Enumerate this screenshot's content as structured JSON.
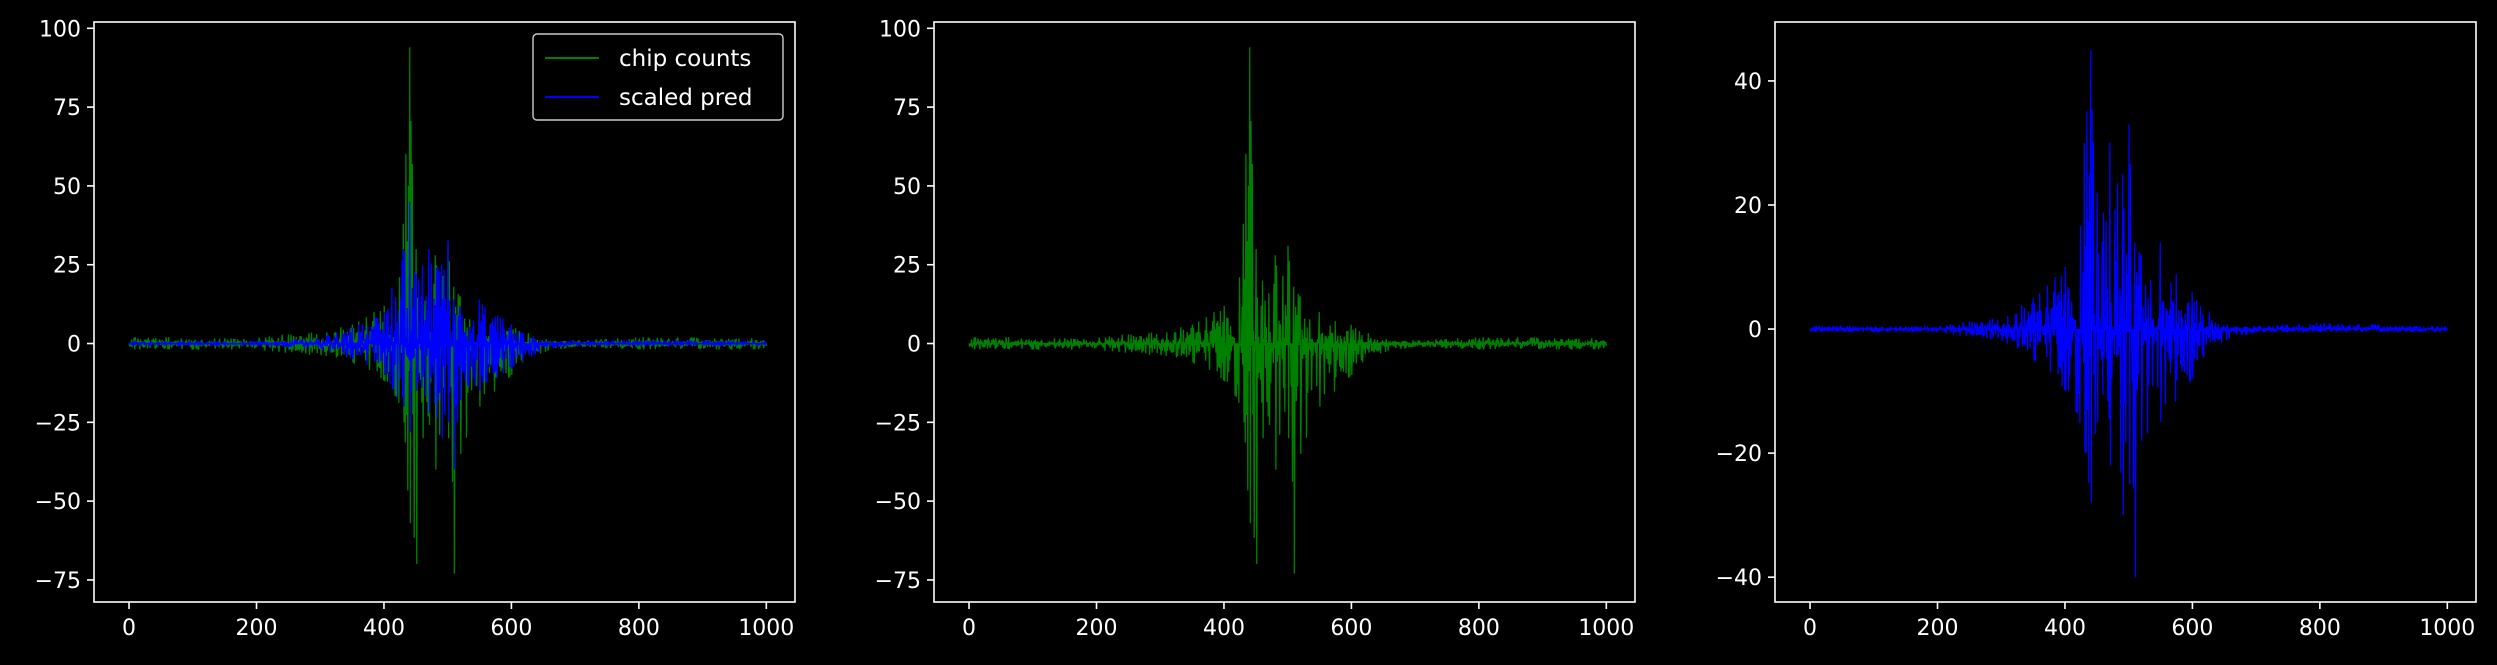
{
  "colors": {
    "background": "#000000",
    "axes": "#ffffff",
    "counts": "#008000",
    "pred": "#0000ff"
  },
  "chart_data": [
    {
      "type": "line",
      "title": "",
      "xlabel": "",
      "ylabel": "",
      "xlim": [
        -55,
        1045
      ],
      "ylim": [
        -82,
        102
      ],
      "xticks": [
        0,
        200,
        400,
        600,
        800,
        1000
      ],
      "xtick_labels": [
        "0",
        "200",
        "400",
        "600",
        "800",
        "1000"
      ],
      "yticks": [
        -75,
        -50,
        -25,
        0,
        25,
        50,
        75,
        100
      ],
      "ytick_labels": [
        "−75",
        "−50",
        "−25",
        "0",
        "25",
        "50",
        "75",
        "100"
      ],
      "legend": {
        "placement": "upper right"
      },
      "series": [
        {
          "name": "chip counts",
          "color": "#008000",
          "x_start": 0,
          "x_end": 1000,
          "n_points": 1000,
          "envelope": {
            "x": [
              0,
              200,
              300,
              350,
              400,
              430,
              440,
              450,
              460,
              480,
              500,
              510,
              520,
              550,
              600,
              650,
              700,
              800,
              1000
            ],
            "upper": [
              2,
              2,
              4,
              6,
              12,
              38,
              94,
              30,
              20,
              28,
              31,
              18,
              15,
              10,
              6,
              2,
              1,
              2,
              2
            ],
            "lower": [
              -2,
              -2,
              -4,
              -6,
              -12,
              -25,
              -57,
              -70,
              -30,
              -40,
              -30,
              -73,
              -35,
              -20,
              -10,
              -3,
              -1,
              -2,
              -2
            ]
          }
        },
        {
          "name": "scaled pred",
          "color": "#0000ff",
          "x_start": 0,
          "x_end": 1000,
          "n_points": 1000,
          "envelope": {
            "x": [
              0,
              200,
              300,
              350,
              400,
              430,
              440,
              450,
              470,
              490,
              500,
              510,
              520,
              550,
              600,
              650,
              700,
              800,
              1000
            ],
            "upper": [
              0.5,
              0.5,
              2,
              5,
              10,
              30,
              45,
              22,
              30,
              25,
              33,
              14,
              12,
              14,
              6,
              1,
              0.5,
              1,
              0.5
            ],
            "lower": [
              -0.5,
              -0.5,
              -2,
              -5,
              -10,
              -20,
              -28,
              -15,
              -22,
              -30,
              -25,
              -40,
              -18,
              -15,
              -8,
              -2,
              -0.5,
              -0.5,
              -0.5
            ]
          }
        }
      ]
    },
    {
      "type": "line",
      "title": "",
      "xlabel": "",
      "ylabel": "",
      "xlim": [
        -55,
        1045
      ],
      "ylim": [
        -82,
        102
      ],
      "xticks": [
        0,
        200,
        400,
        600,
        800,
        1000
      ],
      "xtick_labels": [
        "0",
        "200",
        "400",
        "600",
        "800",
        "1000"
      ],
      "yticks": [
        -75,
        -50,
        -25,
        0,
        25,
        50,
        75,
        100
      ],
      "ytick_labels": [
        "−75",
        "−50",
        "−25",
        "0",
        "25",
        "50",
        "75",
        "100"
      ],
      "series": [
        {
          "name": "chip counts",
          "color": "#008000",
          "x_start": 0,
          "x_end": 1000,
          "n_points": 1000,
          "envelope": {
            "x": [
              0,
              200,
              300,
              350,
              400,
              430,
              440,
              450,
              460,
              480,
              500,
              510,
              520,
              550,
              600,
              650,
              700,
              800,
              1000
            ],
            "upper": [
              2,
              2,
              4,
              6,
              12,
              38,
              94,
              30,
              20,
              28,
              31,
              18,
              15,
              10,
              6,
              2,
              1,
              2,
              2
            ],
            "lower": [
              -2,
              -2,
              -4,
              -6,
              -12,
              -25,
              -57,
              -70,
              -30,
              -40,
              -30,
              -73,
              -35,
              -20,
              -10,
              -3,
              -1,
              -2,
              -2
            ]
          }
        }
      ]
    },
    {
      "type": "line",
      "title": "",
      "xlabel": "",
      "ylabel": "",
      "xlim": [
        -55,
        1045
      ],
      "ylim": [
        -44,
        49.5
      ],
      "xticks": [
        0,
        200,
        400,
        600,
        800,
        1000
      ],
      "xtick_labels": [
        "0",
        "200",
        "400",
        "600",
        "800",
        "1000"
      ],
      "yticks": [
        -40,
        -20,
        0,
        20,
        40
      ],
      "ytick_labels": [
        "−40",
        "−20",
        "0",
        "20",
        "40"
      ],
      "series": [
        {
          "name": "scaled pred",
          "color": "#0000ff",
          "x_start": 0,
          "x_end": 1000,
          "n_points": 1000,
          "envelope": {
            "x": [
              0,
              200,
              300,
              350,
              400,
              430,
              440,
              450,
              470,
              490,
              500,
              510,
              520,
              550,
              600,
              650,
              700,
              800,
              1000
            ],
            "upper": [
              0.5,
              0.5,
              2,
              5,
              10,
              30,
              45,
              22,
              30,
              25,
              33,
              14,
              12,
              14,
              6,
              1,
              0.5,
              1,
              0.5
            ],
            "lower": [
              -0.5,
              -0.5,
              -2,
              -5,
              -10,
              -20,
              -28,
              -15,
              -22,
              -30,
              -25,
              -40,
              -18,
              -15,
              -8,
              -2,
              -0.5,
              -0.5,
              -0.5
            ]
          }
        }
      ]
    }
  ]
}
